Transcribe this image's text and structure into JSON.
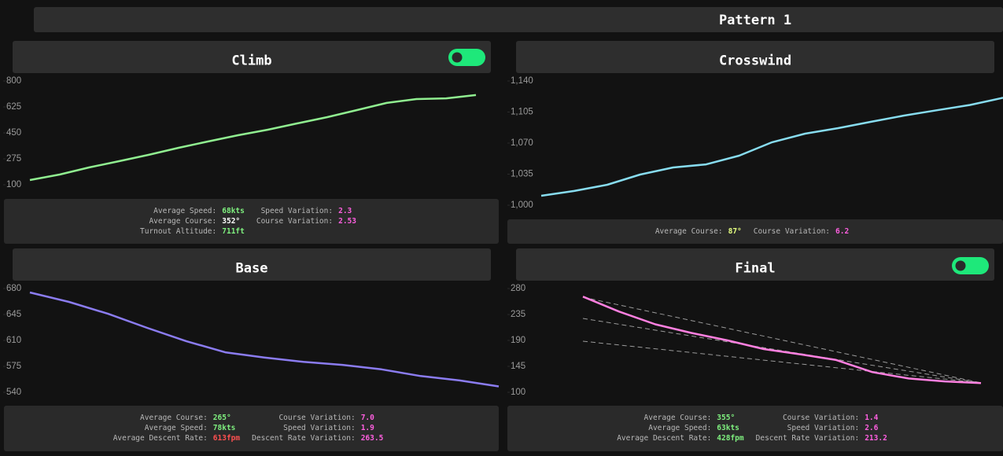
{
  "header": {
    "title": "Pattern 1"
  },
  "chart_data": [
    {
      "type": "line",
      "title": "Climb",
      "color": "#90ee90",
      "ylim": [
        100,
        800
      ],
      "yticks": [
        100,
        275,
        450,
        625,
        800
      ],
      "values": [
        132,
        169,
        217,
        259,
        302,
        349,
        392,
        434,
        471,
        514,
        556,
        604,
        652,
        678,
        683,
        705
      ],
      "stats": [
        [
          {
            "label": "Average Speed:",
            "value": "68kts",
            "color": "#7ff07f"
          },
          {
            "label": "Speed Variation:",
            "value": "2.3",
            "color": "#ff5fe0"
          }
        ],
        [
          {
            "label": "Average Course:",
            "value": "352°",
            "color": "#ffffff"
          },
          {
            "label": "Course Variation:",
            "value": "2.53",
            "color": "#ff5fe0"
          }
        ],
        [
          {
            "label": "Turnout Altitude:",
            "value": "711ft",
            "color": "#7ff07f"
          }
        ]
      ]
    },
    {
      "type": "line",
      "title": "Crosswind",
      "color": "#87dcef",
      "ylim": [
        1000,
        1140
      ],
      "yticks": [
        {
          "value": 1000,
          "label": "1,000"
        },
        {
          "value": 1035,
          "label": "1,035"
        },
        {
          "value": 1070,
          "label": "1,070"
        },
        {
          "value": 1105,
          "label": "1,105"
        },
        {
          "value": 1140,
          "label": "1,140"
        }
      ],
      "values": [
        1010.6,
        1016,
        1023,
        1034.6,
        1042.5,
        1046,
        1055.8,
        1071,
        1080.6,
        1086.8,
        1094,
        1101,
        1107,
        1113,
        1121
      ],
      "stats": [
        [
          {
            "label": "Average Course:",
            "value": "87°",
            "color": "#e6ff80"
          },
          {
            "label": "Course Variation:",
            "value": "6.2",
            "color": "#ff5fe0"
          }
        ]
      ]
    },
    {
      "type": "line",
      "title": "Base",
      "color": "#8b7cf0",
      "ylim": [
        540,
        680
      ],
      "yticks": [
        540,
        575,
        610,
        645,
        680
      ],
      "values": [
        674.7,
        662,
        646,
        627,
        609,
        594,
        587,
        581,
        577,
        571,
        562,
        556,
        548
      ],
      "stats": [
        [
          {
            "label": "Average Course:",
            "value": "265°",
            "color": "#7ff07f"
          },
          {
            "label": "Course Variation:",
            "value": "7.0",
            "color": "#ff5fe0"
          }
        ],
        [
          {
            "label": "Average Speed:",
            "value": "78kts",
            "color": "#7ff07f"
          },
          {
            "label": "Speed Variation:",
            "value": "1.9",
            "color": "#ff5fe0"
          }
        ],
        [
          {
            "label": "Average Descent Rate:",
            "value": "613fpm",
            "color": "#ff5050"
          },
          {
            "label": "Descent Rate Variation:",
            "value": "263.5",
            "color": "#ff5fe0"
          }
        ]
      ]
    },
    {
      "type": "line",
      "title": "Final",
      "color": "#ff80e0",
      "ylim": [
        100,
        280
      ],
      "yticks": [
        100,
        145,
        190,
        235,
        280
      ],
      "values": [
        266,
        240,
        218,
        203,
        190,
        175,
        166,
        156,
        135,
        124,
        119,
        116
      ],
      "stats": [
        [
          {
            "label": "Average Course:",
            "value": "355°",
            "color": "#7ff07f"
          },
          {
            "label": "Course Variation:",
            "value": "1.4",
            "color": "#ff5fe0"
          }
        ],
        [
          {
            "label": "Average Speed:",
            "value": "63kts",
            "color": "#7ff07f"
          },
          {
            "label": "Speed Variation:",
            "value": "2.6",
            "color": "#ff5fe0"
          }
        ],
        [
          {
            "label": "Average Descent Rate:",
            "value": "428fpm",
            "color": "#7ff07f"
          },
          {
            "label": "Descent Rate Variation:",
            "value": "213.2",
            "color": "#ff5fe0"
          }
        ]
      ]
    }
  ]
}
